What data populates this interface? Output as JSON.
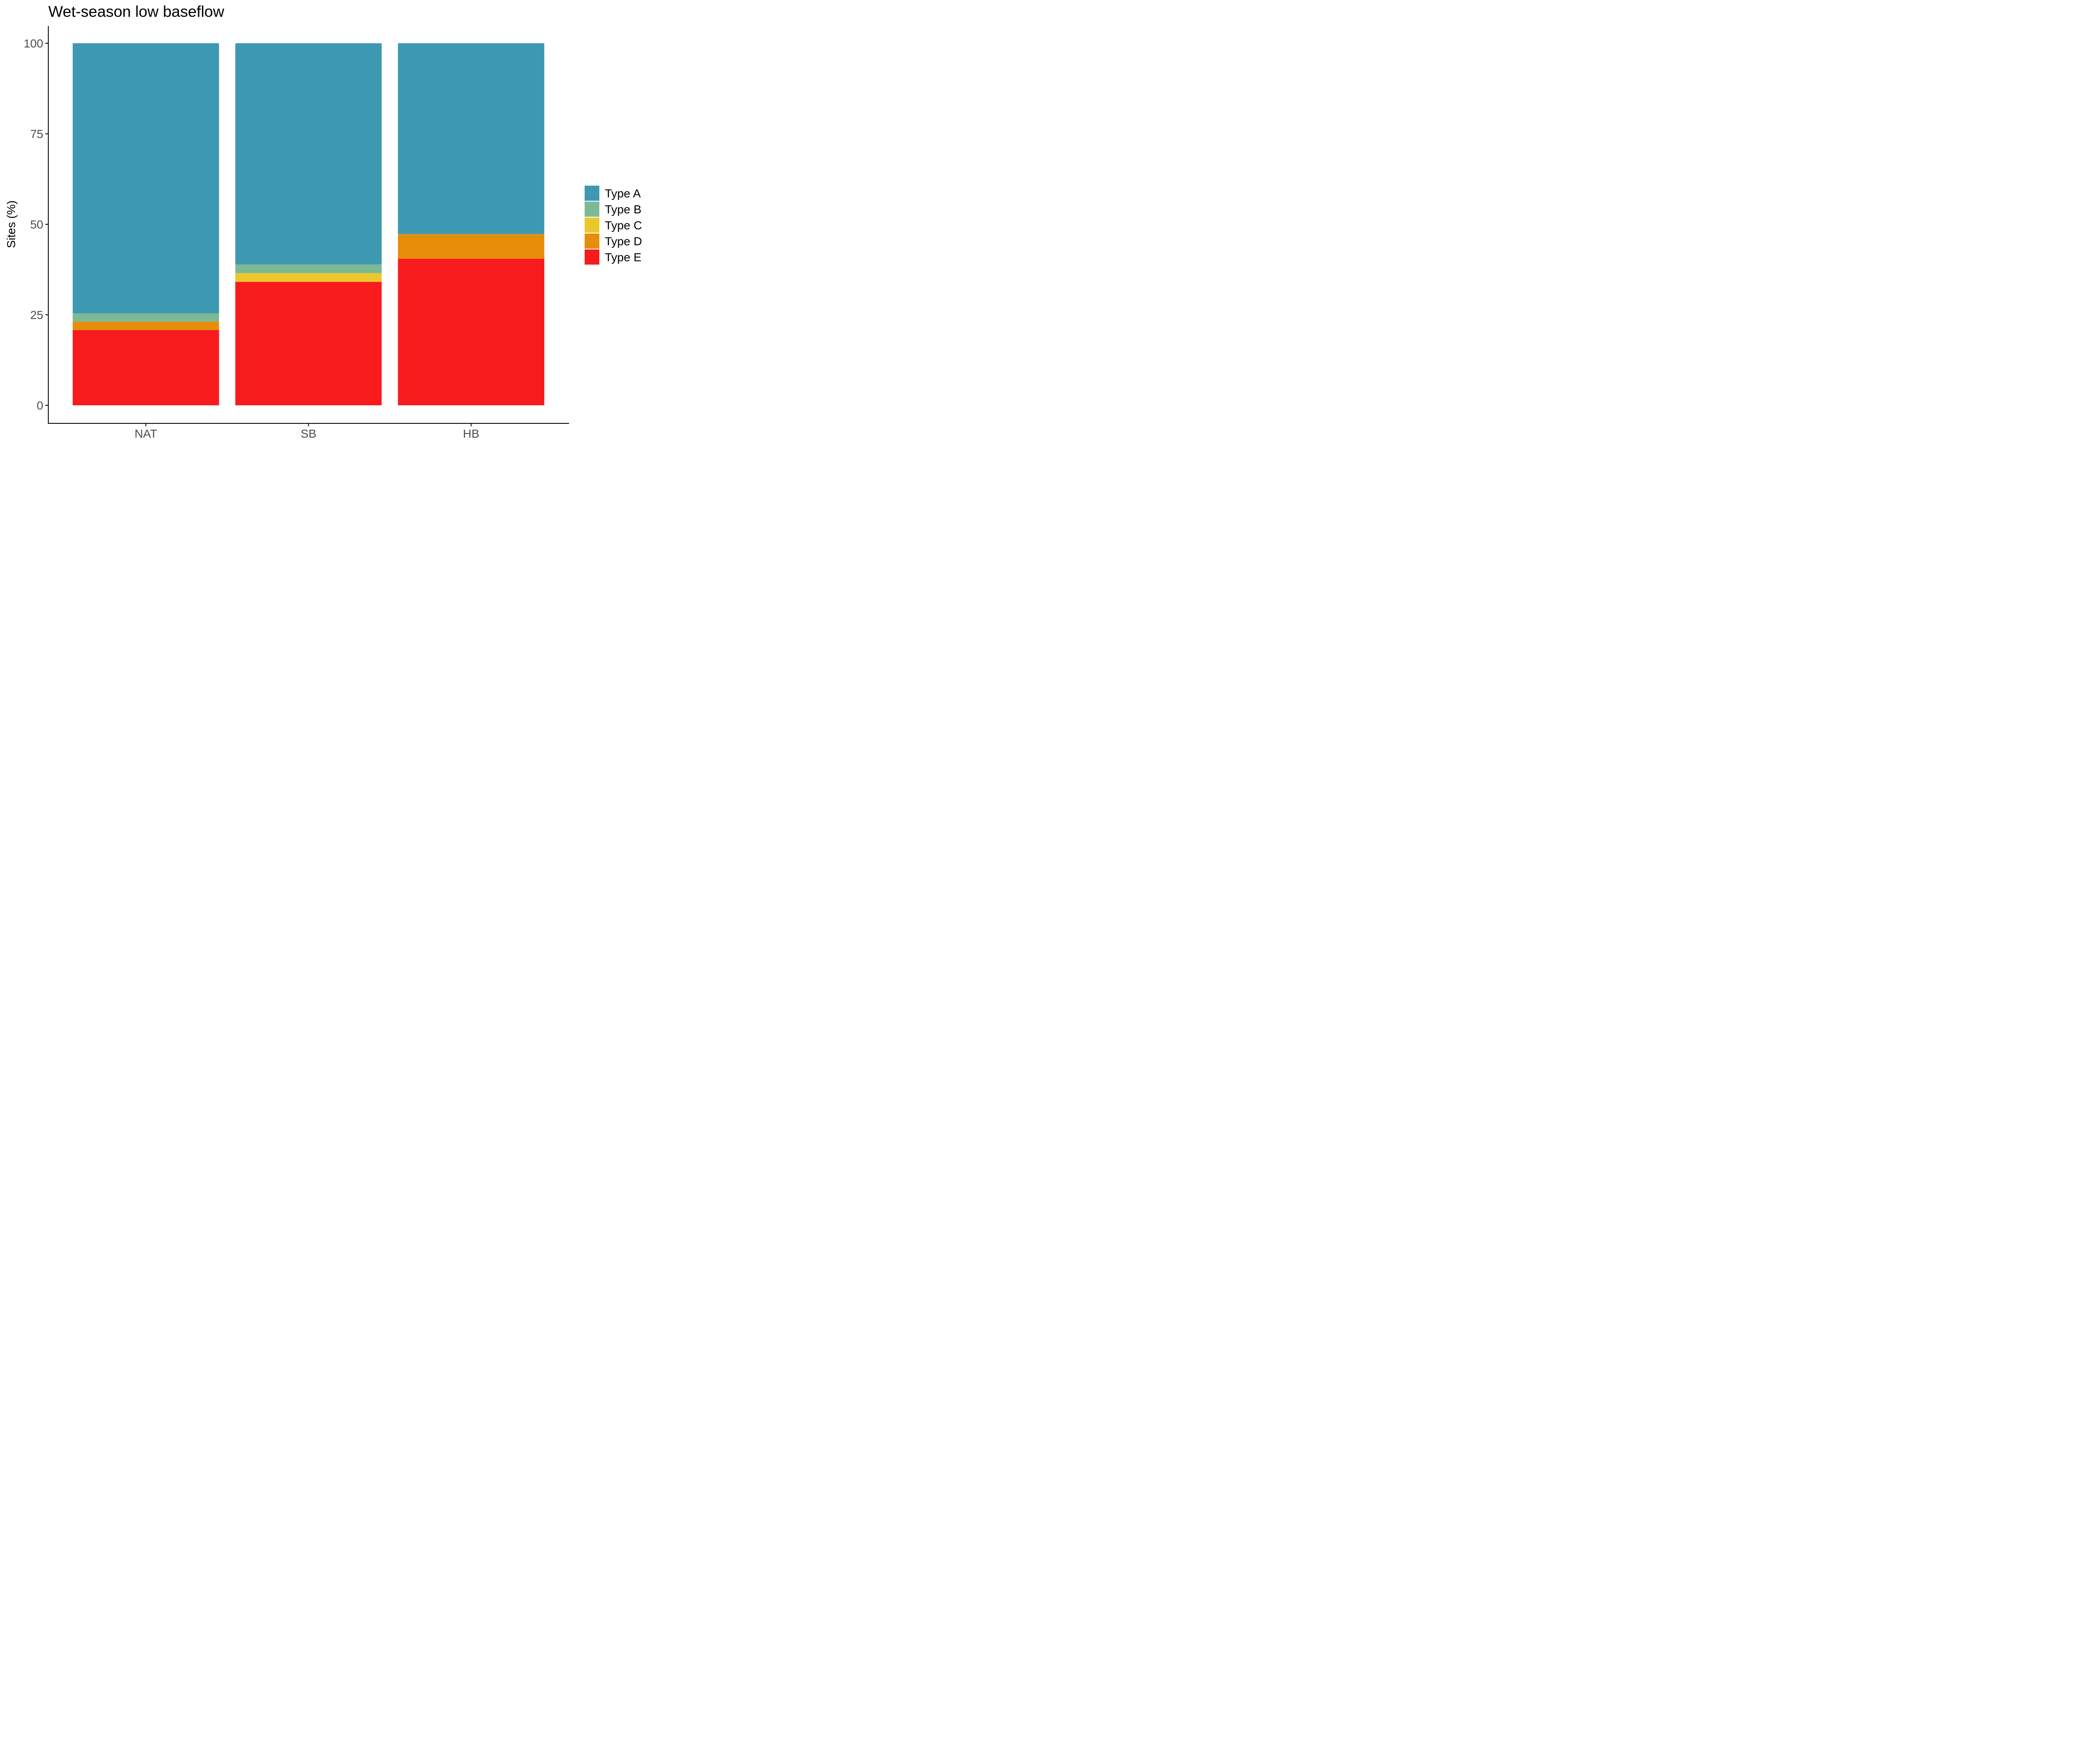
{
  "chart_data": {
    "type": "bar",
    "stacked": true,
    "title": "Wet-season low baseflow",
    "xlabel": "",
    "ylabel": "Sites (%)",
    "ylim": [
      0,
      100
    ],
    "yticks": [
      0,
      25,
      50,
      75,
      100
    ],
    "grid": false,
    "legend_position": "right",
    "categories": [
      "NAT",
      "SB",
      "HB"
    ],
    "series": [
      {
        "name": "Type E",
        "color": "#F71B1D",
        "values": [
          20.8,
          34.1,
          40.5
        ]
      },
      {
        "name": "Type D",
        "color": "#E68E0A",
        "values": [
          2.3,
          0.0,
          6.8
        ]
      },
      {
        "name": "Type C",
        "color": "#EAC82C",
        "values": [
          0.0,
          2.4,
          0.0
        ]
      },
      {
        "name": "Type B",
        "color": "#7EB996",
        "values": [
          2.3,
          2.4,
          0.0
        ]
      },
      {
        "name": "Type A",
        "color": "#3D99B2",
        "values": [
          74.6,
          61.1,
          52.7
        ]
      }
    ],
    "legend_order": [
      "Type A",
      "Type B",
      "Type C",
      "Type D",
      "Type E"
    ]
  }
}
